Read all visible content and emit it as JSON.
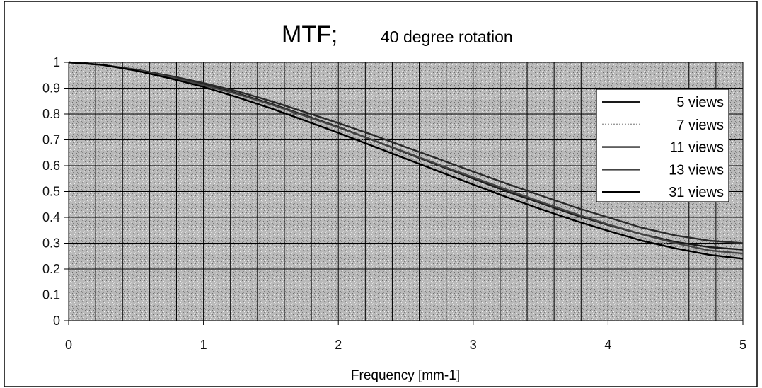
{
  "chart_data": {
    "type": "line",
    "title": "MTF;",
    "subtitle": "40 degree rotation",
    "xlabel": "Frequency  [mm-1]",
    "ylabel": "",
    "xlim": [
      0,
      5
    ],
    "ylim": [
      0,
      1
    ],
    "x_ticks": [
      "0",
      "1",
      "2",
      "3",
      "4",
      "5"
    ],
    "y_ticks": [
      "0",
      "0.1",
      "0.2",
      "0.3",
      "0.4",
      "0.5",
      "0.6",
      "0.7",
      "0.8",
      "0.9",
      "1"
    ],
    "grid": true,
    "legend_position": "top-right",
    "x": [
      0,
      0.25,
      0.5,
      0.75,
      1.0,
      1.25,
      1.5,
      1.75,
      2.0,
      2.25,
      2.5,
      2.75,
      3.0,
      3.25,
      3.5,
      3.75,
      4.0,
      4.25,
      4.5,
      4.75,
      5.0
    ],
    "series": [
      {
        "name": "5  views",
        "color": "#1a1a1a",
        "dash": "",
        "values": [
          1.0,
          0.99,
          0.97,
          0.945,
          0.915,
          0.88,
          0.84,
          0.795,
          0.75,
          0.7,
          0.65,
          0.6,
          0.55,
          0.5,
          0.455,
          0.41,
          0.37,
          0.335,
          0.305,
          0.285,
          0.275
        ]
      },
      {
        "name": "7  views",
        "color": "#9a9a9a",
        "dash": "2 2",
        "values": [
          1.0,
          0.99,
          0.968,
          0.94,
          0.908,
          0.87,
          0.828,
          0.782,
          0.735,
          0.685,
          0.635,
          0.585,
          0.535,
          0.485,
          0.44,
          0.395,
          0.355,
          0.32,
          0.29,
          0.265,
          0.255
        ]
      },
      {
        "name": "11  views",
        "color": "#2a2a2a",
        "dash": "",
        "values": [
          1.0,
          0.99,
          0.972,
          0.948,
          0.92,
          0.888,
          0.85,
          0.808,
          0.765,
          0.72,
          0.672,
          0.625,
          0.577,
          0.53,
          0.485,
          0.44,
          0.4,
          0.36,
          0.33,
          0.31,
          0.3
        ]
      },
      {
        "name": "13  views",
        "color": "#444444",
        "dash": "",
        "values": [
          1.0,
          0.99,
          0.97,
          0.943,
          0.912,
          0.877,
          0.837,
          0.793,
          0.748,
          0.7,
          0.652,
          0.603,
          0.555,
          0.507,
          0.46,
          0.415,
          0.373,
          0.335,
          0.3,
          0.272,
          0.26
        ]
      },
      {
        "name": "31  views",
        "color": "#000000",
        "dash": "",
        "values": [
          1.0,
          0.99,
          0.968,
          0.938,
          0.905,
          0.865,
          0.822,
          0.775,
          0.727,
          0.677,
          0.627,
          0.577,
          0.527,
          0.478,
          0.432,
          0.388,
          0.348,
          0.31,
          0.28,
          0.255,
          0.24
        ]
      }
    ]
  }
}
